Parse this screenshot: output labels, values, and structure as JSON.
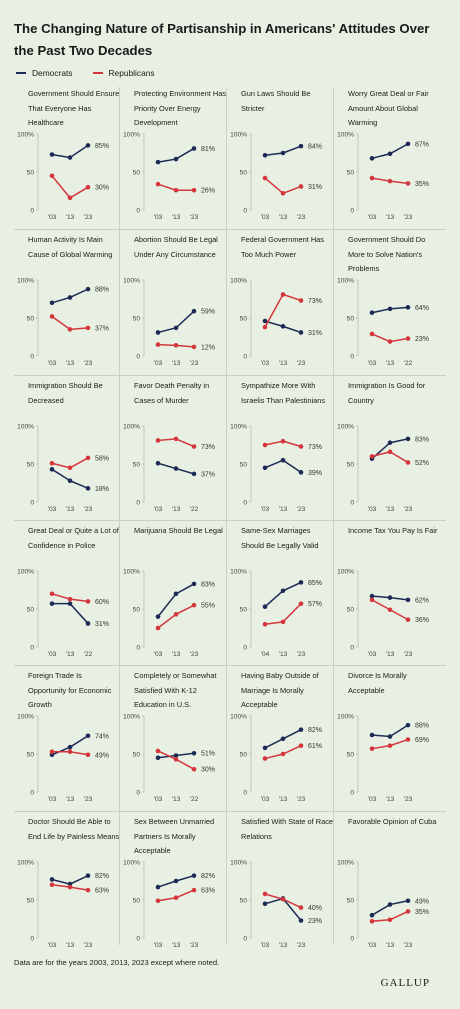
{
  "title": "The Changing Nature of Partisanship in Americans' Attitudes Over the Past Two Decades",
  "legend": {
    "democrats": "Democrats",
    "republicans": "Republicans"
  },
  "colors": {
    "democrats": "#1c2a56",
    "republicans": "#d4363c",
    "background": "#e8f0e3"
  },
  "footnote": "Data are for the years 2003, 2013, 2023 except where noted.",
  "brand": "GALLUP",
  "chart_data": [
    {
      "type": "line",
      "title": "Government Should Ensure That Everyone Has Healthcare",
      "categories": [
        "'03",
        "'13",
        "'23"
      ],
      "ylim": [
        0,
        100
      ],
      "yticks": [
        "0",
        "50",
        "100%"
      ],
      "series": [
        {
          "name": "Democrats",
          "values": [
            73,
            69,
            85
          ],
          "label": "85%"
        },
        {
          "name": "Republicans",
          "values": [
            45,
            16,
            30
          ],
          "label": "30%"
        }
      ]
    },
    {
      "type": "line",
      "title": "Protecting Environment Has Priority Over Energy Development",
      "categories": [
        "'03",
        "'13",
        "'23"
      ],
      "ylim": [
        0,
        100
      ],
      "yticks": [
        "0",
        "50",
        "100%"
      ],
      "series": [
        {
          "name": "Democrats",
          "values": [
            63,
            67,
            81
          ],
          "label": "81%"
        },
        {
          "name": "Republicans",
          "values": [
            34,
            26,
            26
          ],
          "label": "26%"
        }
      ]
    },
    {
      "type": "line",
      "title": "Gun Laws Should Be Stricter",
      "categories": [
        "'03",
        "'13",
        "'23"
      ],
      "ylim": [
        0,
        100
      ],
      "yticks": [
        "0",
        "50",
        "100%"
      ],
      "series": [
        {
          "name": "Democrats",
          "values": [
            72,
            75,
            84
          ],
          "label": "84%"
        },
        {
          "name": "Republicans",
          "values": [
            42,
            22,
            31
          ],
          "label": "31%"
        }
      ]
    },
    {
      "type": "line",
      "title": "Worry Great Deal or Fair Amount About Global Warming",
      "categories": [
        "'03",
        "'13",
        "'23"
      ],
      "ylim": [
        0,
        100
      ],
      "yticks": [
        "0",
        "50",
        "100%"
      ],
      "series": [
        {
          "name": "Democrats",
          "values": [
            68,
            74,
            87
          ],
          "label": "87%"
        },
        {
          "name": "Republicans",
          "values": [
            42,
            38,
            35
          ],
          "label": "35%"
        }
      ]
    },
    {
      "type": "line",
      "title": "Human Activity Is Main Cause of Global Warming",
      "categories": [
        "'03",
        "'13",
        "'23"
      ],
      "ylim": [
        0,
        100
      ],
      "yticks": [
        "0",
        "50",
        "100%"
      ],
      "series": [
        {
          "name": "Democrats",
          "values": [
            70,
            77,
            88
          ],
          "label": "88%"
        },
        {
          "name": "Republicans",
          "values": [
            52,
            35,
            37
          ],
          "label": "37%"
        }
      ]
    },
    {
      "type": "line",
      "title": "Abortion Should Be Legal Under Any Circumstance",
      "categories": [
        "'03",
        "'13",
        "'23"
      ],
      "ylim": [
        0,
        100
      ],
      "yticks": [
        "0",
        "50",
        "100%"
      ],
      "series": [
        {
          "name": "Democrats",
          "values": [
            31,
            37,
            59
          ],
          "label": "59%"
        },
        {
          "name": "Republicans",
          "values": [
            15,
            14,
            12
          ],
          "label": "12%"
        }
      ]
    },
    {
      "type": "line",
      "title": "Federal Government Has Too Much Power",
      "categories": [
        "'03",
        "'13",
        "'23"
      ],
      "ylim": [
        0,
        100
      ],
      "yticks": [
        "0",
        "50",
        "100%"
      ],
      "series": [
        {
          "name": "Democrats",
          "values": [
            46,
            39,
            31
          ],
          "label": "31%"
        },
        {
          "name": "Republicans",
          "values": [
            38,
            81,
            73
          ],
          "label": "73%"
        }
      ]
    },
    {
      "type": "line",
      "title": "Government Should Do More to Solve Nation's Problems",
      "categories": [
        "'03",
        "'13",
        "'22"
      ],
      "ylim": [
        0,
        100
      ],
      "yticks": [
        "0",
        "50",
        "100%"
      ],
      "series": [
        {
          "name": "Democrats",
          "values": [
            57,
            62,
            64
          ],
          "label": "64%"
        },
        {
          "name": "Republicans",
          "values": [
            29,
            19,
            23
          ],
          "label": "23%"
        }
      ]
    },
    {
      "type": "line",
      "title": "Immigration Should Be Decreased",
      "categories": [
        "'03",
        "'13",
        "'23"
      ],
      "ylim": [
        0,
        100
      ],
      "yticks": [
        "0",
        "50",
        "100%"
      ],
      "series": [
        {
          "name": "Democrats",
          "values": [
            43,
            28,
            18
          ],
          "label": "18%"
        },
        {
          "name": "Republicans",
          "values": [
            51,
            45,
            58
          ],
          "label": "58%"
        }
      ]
    },
    {
      "type": "line",
      "title": "Favor Death Penalty in Cases of Murder",
      "categories": [
        "'03",
        "'13",
        "'22"
      ],
      "ylim": [
        0,
        100
      ],
      "yticks": [
        "0",
        "50",
        "100%"
      ],
      "series": [
        {
          "name": "Democrats",
          "values": [
            51,
            44,
            37
          ],
          "label": "37%"
        },
        {
          "name": "Republicans",
          "values": [
            81,
            83,
            73
          ],
          "label": "73%"
        }
      ]
    },
    {
      "type": "line",
      "title": "Sympathize More With Israelis Than Palestinians",
      "categories": [
        "'03",
        "'13",
        "'23"
      ],
      "ylim": [
        0,
        100
      ],
      "yticks": [
        "0",
        "50",
        "100%"
      ],
      "series": [
        {
          "name": "Democrats",
          "values": [
            45,
            55,
            39
          ],
          "label": "39%"
        },
        {
          "name": "Republicans",
          "values": [
            75,
            80,
            73
          ],
          "label": "73%"
        }
      ]
    },
    {
      "type": "line",
      "title": "Immigration Is Good for Country",
      "categories": [
        "'03",
        "'13",
        "'23"
      ],
      "ylim": [
        0,
        100
      ],
      "yticks": [
        "0",
        "50",
        "100%"
      ],
      "series": [
        {
          "name": "Democrats",
          "values": [
            57,
            78,
            83
          ],
          "label": "83%"
        },
        {
          "name": "Republicans",
          "values": [
            60,
            66,
            52
          ],
          "label": "52%"
        }
      ]
    },
    {
      "type": "line",
      "title": "Great Deal or Quite a Lot of Confidence in Police",
      "categories": [
        "'03",
        "'13",
        "'22"
      ],
      "ylim": [
        0,
        100
      ],
      "yticks": [
        "0",
        "50",
        "100%"
      ],
      "series": [
        {
          "name": "Democrats",
          "values": [
            57,
            57,
            31
          ],
          "label": "31%"
        },
        {
          "name": "Republicans",
          "values": [
            70,
            63,
            60
          ],
          "label": "60%"
        }
      ]
    },
    {
      "type": "line",
      "title": "Marijuana Should Be Legal",
      "categories": [
        "'03",
        "'13",
        "'23"
      ],
      "ylim": [
        0,
        100
      ],
      "yticks": [
        "0",
        "50",
        "100%"
      ],
      "series": [
        {
          "name": "Democrats",
          "values": [
            40,
            70,
            83
          ],
          "label": "83%"
        },
        {
          "name": "Republicans",
          "values": [
            25,
            43,
            55
          ],
          "label": "55%"
        }
      ]
    },
    {
      "type": "line",
      "title": "Same-Sex Marriages Should Be Legally Valid",
      "categories": [
        "'04",
        "'13",
        "'23"
      ],
      "ylim": [
        0,
        100
      ],
      "yticks": [
        "0",
        "50",
        "100%"
      ],
      "series": [
        {
          "name": "Democrats",
          "values": [
            53,
            74,
            85
          ],
          "label": "85%"
        },
        {
          "name": "Republicans",
          "values": [
            30,
            33,
            57
          ],
          "label": "57%"
        }
      ]
    },
    {
      "type": "line",
      "title": "Income Tax You Pay Is Fair",
      "categories": [
        "'03",
        "'13",
        "'23"
      ],
      "ylim": [
        0,
        100
      ],
      "yticks": [
        "0",
        "50",
        "100%"
      ],
      "series": [
        {
          "name": "Democrats",
          "values": [
            67,
            65,
            62
          ],
          "label": "62%"
        },
        {
          "name": "Republicans",
          "values": [
            62,
            49,
            36
          ],
          "label": "36%"
        }
      ]
    },
    {
      "type": "line",
      "title": "Foreign Trade Is Opportunity for Economic Growth",
      "categories": [
        "'03",
        "'13",
        "'23"
      ],
      "ylim": [
        0,
        100
      ],
      "yticks": [
        "0",
        "50",
        "100%"
      ],
      "series": [
        {
          "name": "Democrats",
          "values": [
            49,
            59,
            74
          ],
          "label": "74%"
        },
        {
          "name": "Republicans",
          "values": [
            53,
            53,
            49
          ],
          "label": "49%"
        }
      ]
    },
    {
      "type": "line",
      "title": "Completely or Somewhat Satisfied With K-12 Education in U.S.",
      "categories": [
        "'03",
        "'13",
        "'22"
      ],
      "ylim": [
        0,
        100
      ],
      "yticks": [
        "0",
        "50",
        "100%"
      ],
      "series": [
        {
          "name": "Democrats",
          "values": [
            45,
            48,
            51
          ],
          "label": "51%"
        },
        {
          "name": "Republicans",
          "values": [
            54,
            43,
            30
          ],
          "label": "30%"
        }
      ]
    },
    {
      "type": "line",
      "title": "Having Baby Outside of Marriage Is Morally Acceptable",
      "categories": [
        "'03",
        "'13",
        "'23"
      ],
      "ylim": [
        0,
        100
      ],
      "yticks": [
        "0",
        "50",
        "100%"
      ],
      "series": [
        {
          "name": "Democrats",
          "values": [
            58,
            70,
            82
          ],
          "label": "82%"
        },
        {
          "name": "Republicans",
          "values": [
            44,
            50,
            61
          ],
          "label": "61%"
        }
      ]
    },
    {
      "type": "line",
      "title": "Divorce Is Morally Acceptable",
      "categories": [
        "'03",
        "'13",
        "'23"
      ],
      "ylim": [
        0,
        100
      ],
      "yticks": [
        "0",
        "50",
        "100%"
      ],
      "series": [
        {
          "name": "Democrats",
          "values": [
            75,
            73,
            88
          ],
          "label": "88%"
        },
        {
          "name": "Republicans",
          "values": [
            57,
            61,
            69
          ],
          "label": "69%"
        }
      ]
    },
    {
      "type": "line",
      "title": "Doctor Should Be Able to End Life by Painless Means",
      "categories": [
        "'03",
        "'13",
        "'23"
      ],
      "ylim": [
        0,
        100
      ],
      "yticks": [
        "0",
        "50",
        "100%"
      ],
      "series": [
        {
          "name": "Democrats",
          "values": [
            77,
            71,
            82
          ],
          "label": "82%"
        },
        {
          "name": "Republicans",
          "values": [
            70,
            67,
            63
          ],
          "label": "63%"
        }
      ]
    },
    {
      "type": "line",
      "title": "Sex Between Unmarried Partners Is Morally Acceptable",
      "categories": [
        "'03",
        "'13",
        "'23"
      ],
      "ylim": [
        0,
        100
      ],
      "yticks": [
        "0",
        "50",
        "100%"
      ],
      "series": [
        {
          "name": "Democrats",
          "values": [
            67,
            75,
            82
          ],
          "label": "82%"
        },
        {
          "name": "Republicans",
          "values": [
            49,
            53,
            63
          ],
          "label": "63%"
        }
      ]
    },
    {
      "type": "line",
      "title": "Satisfied With State of Race Relations",
      "categories": [
        "'03",
        "'13",
        "'23"
      ],
      "ylim": [
        0,
        100
      ],
      "yticks": [
        "0",
        "50",
        "100%"
      ],
      "series": [
        {
          "name": "Democrats",
          "values": [
            45,
            52,
            23
          ],
          "label": "23%"
        },
        {
          "name": "Republicans",
          "values": [
            58,
            51,
            40
          ],
          "label": "40%"
        }
      ]
    },
    {
      "type": "line",
      "title": "Favorable Opinion of Cuba",
      "categories": [
        "'03",
        "'13",
        "'23"
      ],
      "ylim": [
        0,
        100
      ],
      "yticks": [
        "0",
        "50",
        "100%"
      ],
      "series": [
        {
          "name": "Democrats",
          "values": [
            30,
            44,
            49
          ],
          "label": "49%"
        },
        {
          "name": "Republicans",
          "values": [
            22,
            24,
            35
          ],
          "label": "35%"
        }
      ]
    }
  ]
}
